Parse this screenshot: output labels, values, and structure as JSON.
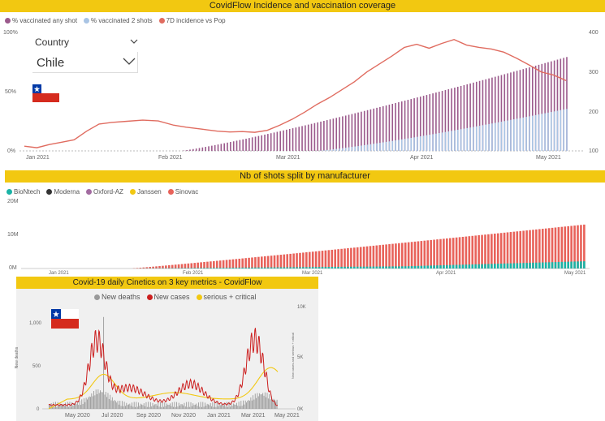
{
  "chart_data": [
    {
      "type": "bar",
      "title": "CovidFlow Incidence and vaccination coverage",
      "legend": [
        {
          "label": "% vaccinated any shot",
          "color": "#9b5a8c"
        },
        {
          "label": "% vaccinated 2 shots",
          "color": "#a9c4e4"
        },
        {
          "label": "7D incidence vs Pop",
          "color": "#e06c60"
        }
      ],
      "left_axis_ticks": [
        "100%",
        "50%",
        "0%"
      ],
      "right_axis_ticks": [
        "400",
        "300",
        "200",
        "100"
      ],
      "x_ticks": [
        "Jan 2021",
        "Feb 2021",
        "Mar 2021",
        "Apr 2021",
        "May 2021"
      ],
      "ylim_left": [
        0,
        100
      ],
      "ylim_right": [
        100,
        400
      ],
      "series_any_shot_start_end": [
        0,
        80
      ],
      "series_two_shots_start_end": [
        0,
        36
      ],
      "incidence_points": [
        [
          0,
          112
        ],
        [
          4,
          108
        ],
        [
          8,
          116
        ],
        [
          12,
          122
        ],
        [
          16,
          128
        ],
        [
          20,
          150
        ],
        [
          24,
          168
        ],
        [
          28,
          172
        ],
        [
          33,
          175
        ],
        [
          38,
          178
        ],
        [
          43,
          176
        ],
        [
          48,
          165
        ],
        [
          52,
          160
        ],
        [
          57,
          155
        ],
        [
          62,
          150
        ],
        [
          66,
          148
        ],
        [
          70,
          149
        ],
        [
          74,
          147
        ],
        [
          78,
          152
        ],
        [
          82,
          165
        ],
        [
          86,
          180
        ],
        [
          90,
          198
        ],
        [
          94,
          218
        ],
        [
          98,
          235
        ],
        [
          102,
          255
        ],
        [
          106,
          275
        ],
        [
          110,
          300
        ],
        [
          114,
          320
        ],
        [
          118,
          340
        ],
        [
          122,
          362
        ],
        [
          126,
          370
        ],
        [
          130,
          360
        ],
        [
          134,
          372
        ],
        [
          138,
          382
        ],
        [
          142,
          368
        ],
        [
          146,
          362
        ],
        [
          150,
          358
        ],
        [
          154,
          350
        ],
        [
          158,
          335
        ],
        [
          162,
          318
        ],
        [
          166,
          300
        ],
        [
          170,
          292
        ],
        [
          174,
          278
        ]
      ]
    },
    {
      "type": "bar",
      "title": "Nb of shots split by manufacturer",
      "legend": [
        {
          "label": "BioNtech",
          "color": "#1ab3a6"
        },
        {
          "label": "Moderna",
          "color": "#333333"
        },
        {
          "label": "Oxford-AZ",
          "color": "#a26ba0"
        },
        {
          "label": "Janssen",
          "color": "#f2c811"
        },
        {
          "label": "Sinovac",
          "color": "#e8625a"
        }
      ],
      "y_ticks": [
        "20M",
        "10M",
        "0M"
      ],
      "x_ticks": [
        "Jan 2021",
        "Feb 2021",
        "Mar 2021",
        "Apr 2021",
        "May 2021"
      ],
      "ylim": [
        0,
        20
      ],
      "sinovac_end_M": 13.3,
      "biontech_end_M": 2.2
    },
    {
      "type": "line",
      "title": "Covid-19 daily Cinetics on 3 key metrics - CovidFlow",
      "legend": [
        {
          "label": "New deaths",
          "color": "#9a9a9a"
        },
        {
          "label": "New cases",
          "color": "#cc1f1f"
        },
        {
          "label": "serious + critical",
          "color": "#f2c811"
        }
      ],
      "left_axis_ticks": [
        "1,000",
        "500",
        "0"
      ],
      "left_axis_label": "New deaths",
      "right_axis_ticks": [
        "10K",
        "5K",
        "0K"
      ],
      "right_axis_label": "New cases and serious + critical",
      "x_ticks": [
        "May 2020",
        "Jul 2020",
        "Sep 2020",
        "Nov 2020",
        "Jan 2021",
        "Mar 2021",
        "May 2021"
      ]
    }
  ],
  "country_filter": {
    "label": "Country",
    "value": "Chile"
  },
  "colors": {
    "banner": "#f2c811",
    "flag_red": "#d52b1e",
    "flag_blue": "#0039a6"
  }
}
